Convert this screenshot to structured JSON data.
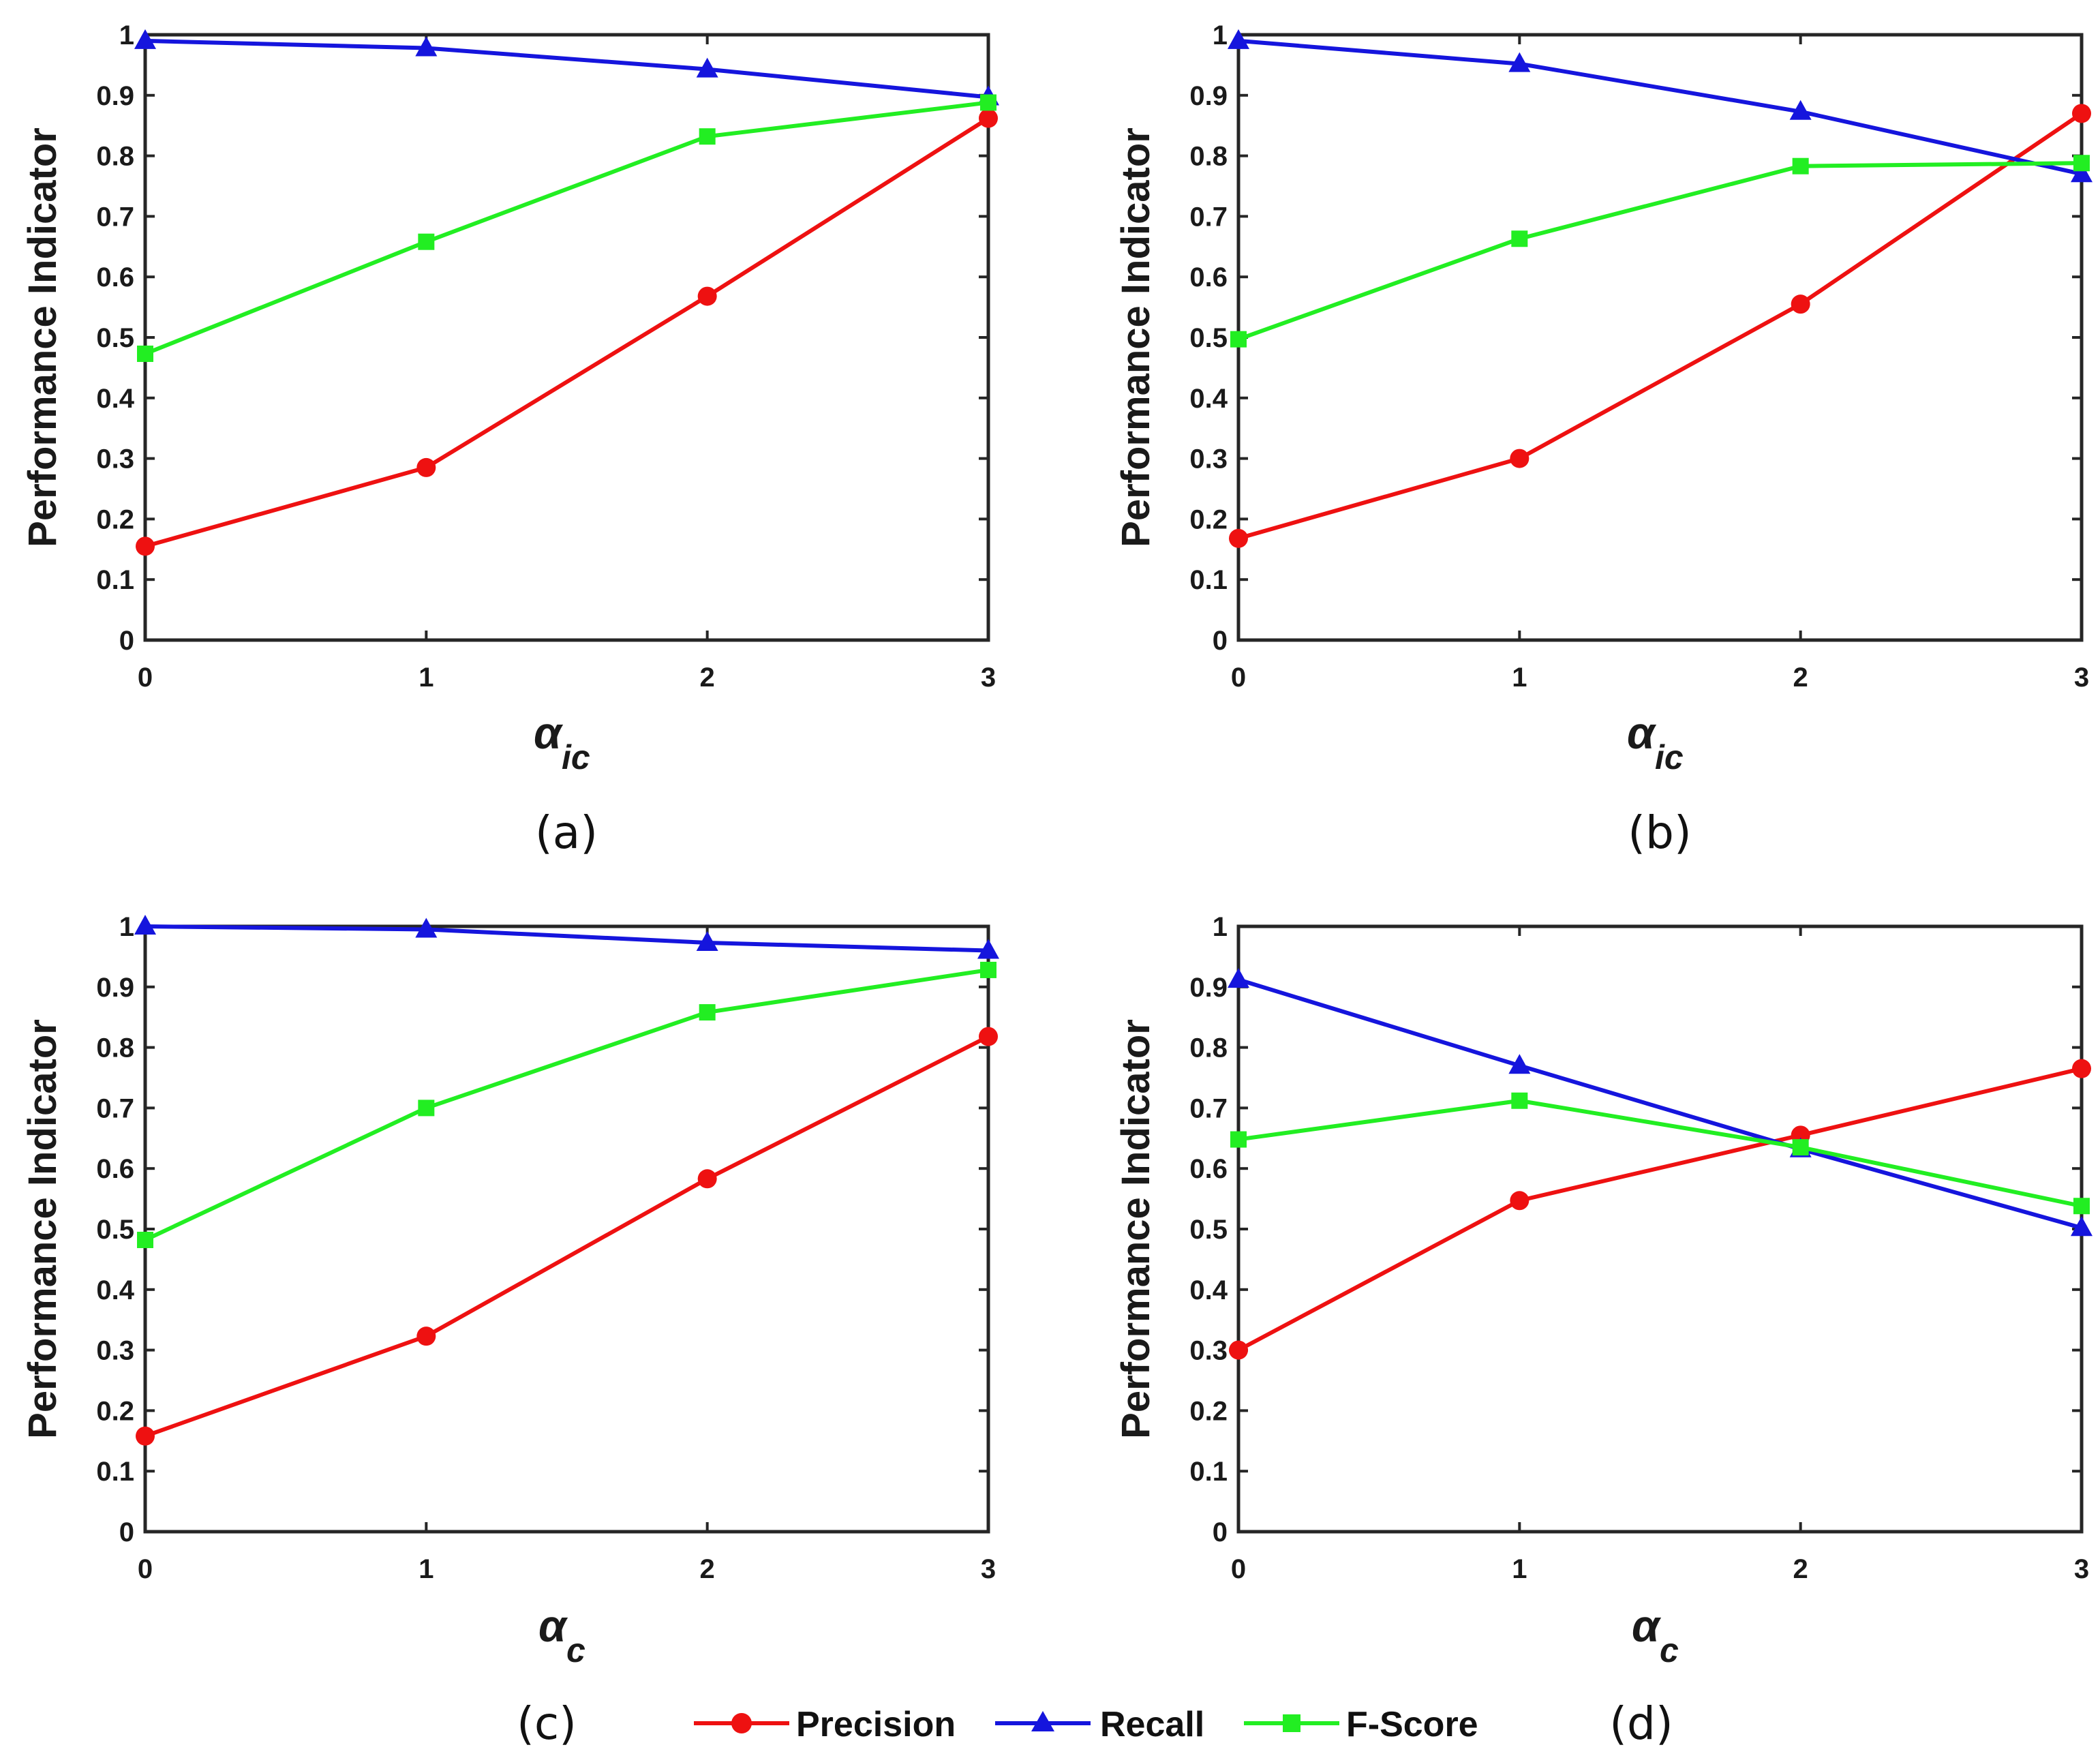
{
  "colors": {
    "precision": "#ee1111",
    "recall": "#1515dd",
    "fscore": "#22ee22",
    "axis": "#262626"
  },
  "legend": {
    "items": [
      {
        "key": "precision",
        "label": "Precision",
        "marker": "circle"
      },
      {
        "key": "recall",
        "label": "Recall",
        "marker": "triangle"
      },
      {
        "key": "fscore",
        "label": "F-Score",
        "marker": "square"
      }
    ]
  },
  "chart_data": [
    {
      "type": "line",
      "panel_label": "(a)",
      "xlabel": "α",
      "xlabel_sub": "ic",
      "ylabel": "Performance Indicator",
      "x": [
        0,
        1,
        2,
        3
      ],
      "xticks": [
        "0",
        "1",
        "2",
        "3"
      ],
      "yticks": [
        "0",
        "0.1",
        "0.2",
        "0.3",
        "0.4",
        "0.5",
        "0.6",
        "0.7",
        "0.8",
        "0.9",
        "1"
      ],
      "xlim": [
        0,
        3
      ],
      "ylim": [
        0,
        1
      ],
      "series": [
        {
          "name": "Precision",
          "key": "precision",
          "values": [
            0.155,
            0.285,
            0.568,
            0.862
          ]
        },
        {
          "name": "Recall",
          "key": "recall",
          "values": [
            0.99,
            0.978,
            0.943,
            0.897
          ]
        },
        {
          "name": "F-Score",
          "key": "fscore",
          "values": [
            0.473,
            0.658,
            0.832,
            0.888
          ]
        }
      ]
    },
    {
      "type": "line",
      "panel_label": "(b)",
      "xlabel": "α",
      "xlabel_sub": "ic",
      "ylabel": "Performance Indicator",
      "x": [
        0,
        1,
        2,
        3
      ],
      "xticks": [
        "0",
        "1",
        "2",
        "3"
      ],
      "yticks": [
        "0",
        "0.1",
        "0.2",
        "0.3",
        "0.4",
        "0.5",
        "0.6",
        "0.7",
        "0.8",
        "0.9",
        "1"
      ],
      "xlim": [
        0,
        3
      ],
      "ylim": [
        0,
        1
      ],
      "series": [
        {
          "name": "Precision",
          "key": "precision",
          "values": [
            0.168,
            0.3,
            0.555,
            0.87
          ]
        },
        {
          "name": "Recall",
          "key": "recall",
          "values": [
            0.99,
            0.952,
            0.873,
            0.77
          ]
        },
        {
          "name": "F-Score",
          "key": "fscore",
          "values": [
            0.497,
            0.663,
            0.783,
            0.788
          ]
        }
      ]
    },
    {
      "type": "line",
      "panel_label": "(c)",
      "xlabel": "α",
      "xlabel_sub": "c",
      "ylabel": "Performance Indicator",
      "x": [
        0,
        1,
        2,
        3
      ],
      "xticks": [
        "0",
        "1",
        "2",
        "3"
      ],
      "yticks": [
        "0",
        "0.1",
        "0.2",
        "0.3",
        "0.4",
        "0.5",
        "0.6",
        "0.7",
        "0.8",
        "0.9",
        "1"
      ],
      "xlim": [
        0,
        3
      ],
      "ylim": [
        0,
        1
      ],
      "series": [
        {
          "name": "Precision",
          "key": "precision",
          "values": [
            0.158,
            0.323,
            0.583,
            0.818
          ]
        },
        {
          "name": "Recall",
          "key": "recall",
          "values": [
            1.0,
            0.995,
            0.973,
            0.96
          ]
        },
        {
          "name": "F-Score",
          "key": "fscore",
          "values": [
            0.482,
            0.7,
            0.858,
            0.928
          ]
        }
      ]
    },
    {
      "type": "line",
      "panel_label": "(d)",
      "xlabel": "α",
      "xlabel_sub": "c",
      "ylabel": "Performance Indicator",
      "x": [
        0,
        1,
        2,
        3
      ],
      "xticks": [
        "0",
        "1",
        "2",
        "3"
      ],
      "yticks": [
        "0",
        "0.1",
        "0.2",
        "0.3",
        "0.4",
        "0.5",
        "0.6",
        "0.7",
        "0.8",
        "0.9",
        "1"
      ],
      "xlim": [
        0,
        3
      ],
      "ylim": [
        0,
        1
      ],
      "series": [
        {
          "name": "Precision",
          "key": "precision",
          "values": [
            0.3,
            0.547,
            0.655,
            0.765
          ]
        },
        {
          "name": "Recall",
          "key": "recall",
          "values": [
            0.912,
            0.77,
            0.632,
            0.502
          ]
        },
        {
          "name": "F-Score",
          "key": "fscore",
          "values": [
            0.648,
            0.712,
            0.635,
            0.538
          ]
        }
      ]
    }
  ]
}
